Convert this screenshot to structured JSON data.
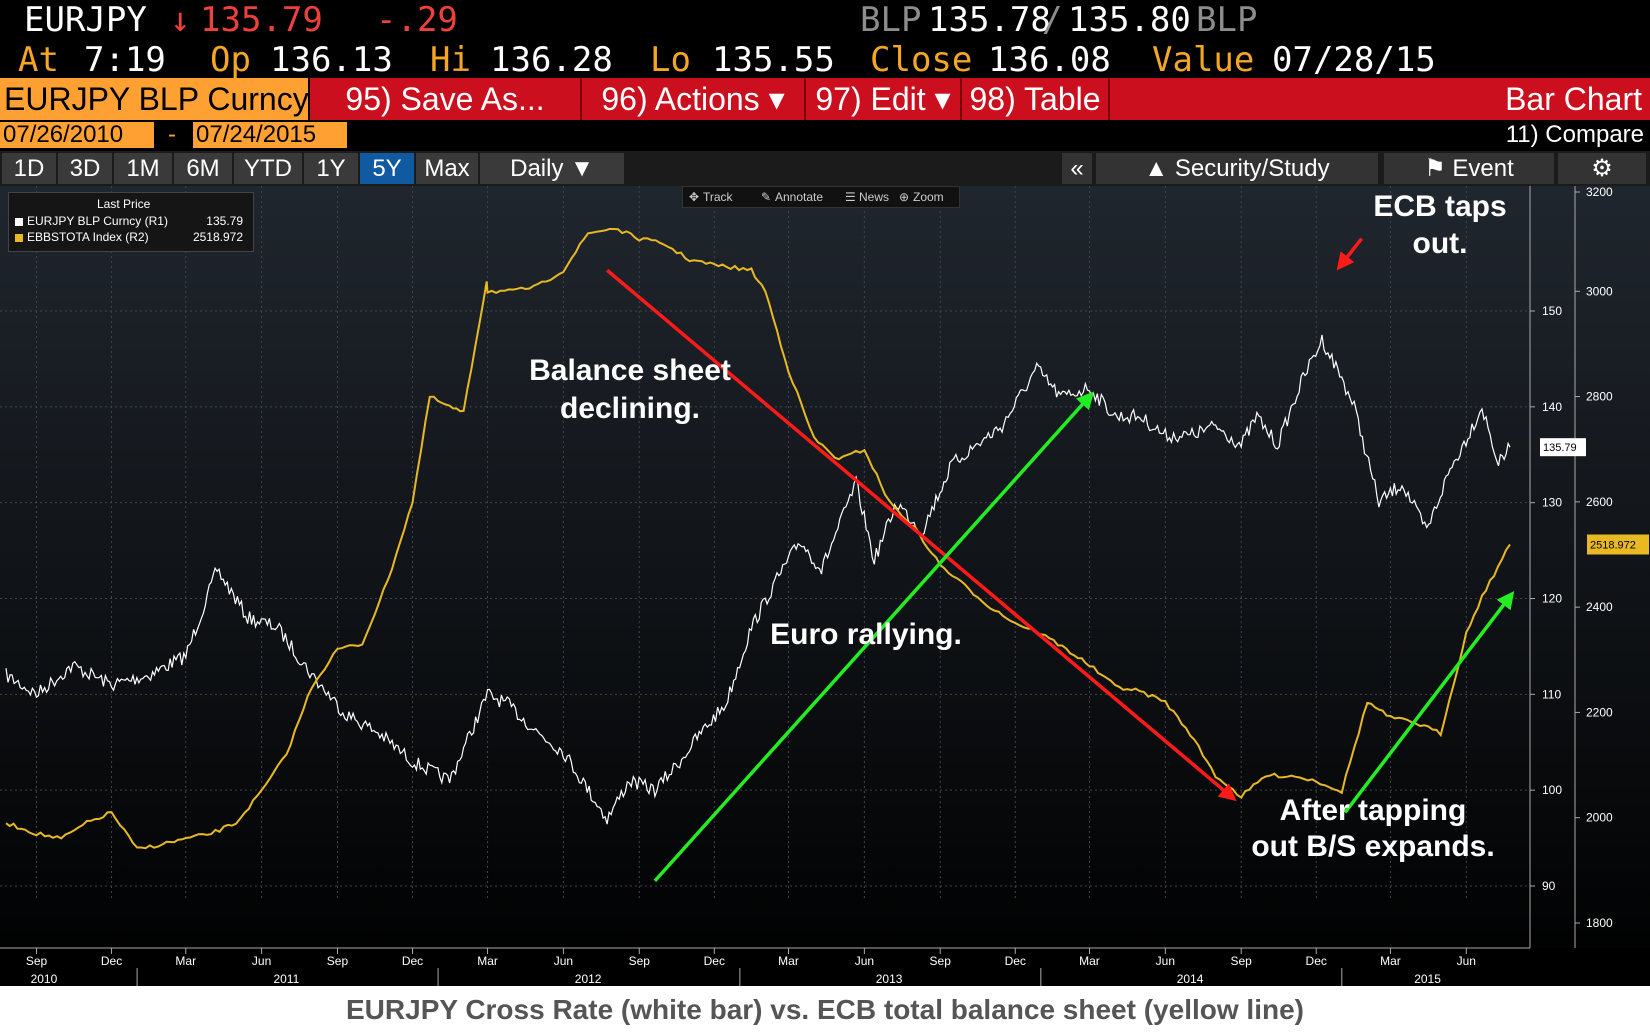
{
  "quote": {
    "ticker": "EURJPY",
    "arrow": "↓",
    "last": "135.79",
    "change": "-.29",
    "bid_label": "BLP",
    "bid": "135.78",
    "separator": "/",
    "ask": "135.80",
    "ask_label": "BLP",
    "at_label": "At",
    "at_time": "7:19",
    "op_label": "Op",
    "op": "136.13",
    "hi_label": "Hi",
    "hi": "136.28",
    "lo_label": "Lo",
    "lo": "135.55",
    "close_label": "Close",
    "close": "136.08",
    "value_label": "Value",
    "value_date": "07/28/15"
  },
  "toolbar": {
    "security": "EURJPY BLP Curncy",
    "save_as": "95) Save As...",
    "actions": "96) Actions ▾",
    "edit": "97) Edit ▾",
    "table": "98) Table",
    "title": "Bar Chart"
  },
  "dates": {
    "start": "07/26/2010",
    "dash": "-",
    "end": "07/24/2015",
    "compare": "11) Compare"
  },
  "tabs": [
    "1D",
    "3D",
    "1M",
    "6M",
    "YTD",
    "1Y",
    "5Y",
    "Max",
    "Daily ▼"
  ],
  "active_tab": "5Y",
  "right_tabs": {
    "collapse": "«",
    "study": "Security/Study",
    "event": "Event",
    "settings": "⚙"
  },
  "legend": {
    "header": "Last Price",
    "r1_name": "EURJPY BLP Curncy  (R1)",
    "r1_value": "135.79",
    "r2_name": "EBBSTOTA Index  (R2)",
    "r2_value": "2518.972"
  },
  "tools": [
    "Track",
    "Annotate",
    "News",
    "Zoom"
  ],
  "annotations": {
    "ecb_1": "ECB taps",
    "ecb_2": "out.",
    "bs_1": "Balance sheet",
    "bs_2": "declining.",
    "euro": "Euro rallying.",
    "after_1": "After tapping",
    "after_2": "out B/S expands."
  },
  "caption": "EURJPY Cross Rate (white bar) vs. ECB total balance sheet (yellow line)",
  "colors": {
    "background": "#000000",
    "price": "#ffffff",
    "balance_sheet": "#e8b923",
    "accent_red": "#cc0f1e",
    "accent_orange": "#ffa033",
    "arrow_red": "#ff1a1a",
    "arrow_green": "#22ee22"
  },
  "chart_data": {
    "type": "line",
    "x_ticks": [
      "Sep",
      "Dec",
      "Mar",
      "Jun",
      "Sep",
      "Dec",
      "Mar",
      "Jun",
      "Sep",
      "Dec",
      "Mar",
      "Jun",
      "Sep",
      "Dec",
      "Mar",
      "Jun",
      "Sep",
      "Dec",
      "Mar",
      "Jun"
    ],
    "year_labels": [
      "2010",
      "2011",
      "2012",
      "2013",
      "2014",
      "2015"
    ],
    "left_axis": {
      "ylim": [
        90,
        150
      ],
      "ticks": [
        90,
        100,
        110,
        120,
        130,
        140,
        150
      ]
    },
    "right_axis": {
      "ylim": [
        1800,
        3200
      ],
      "ticks": [
        1800,
        2000,
        2200,
        2400,
        2600,
        2800,
        3000,
        3200
      ]
    },
    "last_value_tags": [
      {
        "series": "EURJPY BLP Curncy",
        "value": "135.79"
      },
      {
        "series": "EBBSTOTA Index",
        "value": "2518.972"
      }
    ],
    "series": [
      {
        "name": "EURJPY BLP Curncy",
        "axis": "left",
        "x": [
          "2010-07-26",
          "2010-09-01",
          "2010-10-15",
          "2010-12-01",
          "2011-01-15",
          "2011-03-01",
          "2011-04-08",
          "2011-05-15",
          "2011-06-20",
          "2011-08-01",
          "2011-09-10",
          "2011-10-20",
          "2011-12-01",
          "2012-01-15",
          "2012-03-01",
          "2012-03-25",
          "2012-05-01",
          "2012-06-01",
          "2012-07-24",
          "2012-08-20",
          "2012-09-20",
          "2012-10-20",
          "2012-11-15",
          "2012-12-15",
          "2013-01-15",
          "2013-02-15",
          "2013-03-15",
          "2013-04-10",
          "2013-05-22",
          "2013-06-13",
          "2013-07-10",
          "2013-08-10",
          "2013-09-15",
          "2013-10-15",
          "2013-11-15",
          "2013-12-27",
          "2014-01-25",
          "2014-03-01",
          "2014-04-01",
          "2014-05-01",
          "2014-06-01",
          "2014-07-01",
          "2014-08-01",
          "2014-09-01",
          "2014-09-20",
          "2014-10-15",
          "2014-11-15",
          "2014-12-08",
          "2015-01-01",
          "2015-01-16",
          "2015-02-15",
          "2015-03-15",
          "2015-04-14",
          "2015-05-10",
          "2015-06-03",
          "2015-06-20",
          "2015-07-10",
          "2015-07-24"
        ],
        "values": [
          112,
          110,
          113,
          111,
          112,
          114,
          123,
          118,
          117,
          112,
          108,
          106,
          103,
          101,
          110,
          109,
          106,
          104,
          97,
          101,
          100,
          103,
          106,
          109,
          117,
          122,
          126,
          123,
          132,
          124,
          130,
          127,
          134,
          136,
          138,
          144,
          141,
          142,
          139,
          139,
          137,
          137,
          138,
          136,
          139,
          136,
          143,
          147,
          143,
          140,
          130,
          132,
          127,
          133,
          137,
          140,
          134,
          135.79
        ]
      },
      {
        "name": "EBBSTOTA Index",
        "axis": "right",
        "x": [
          "2010-07-26",
          "2010-09-01",
          "2010-10-01",
          "2010-11-01",
          "2010-12-01",
          "2011-01-01",
          "2011-02-01",
          "2011-03-01",
          "2011-04-01",
          "2011-05-01",
          "2011-06-01",
          "2011-07-01",
          "2011-08-01",
          "2011-09-01",
          "2011-10-01",
          "2011-11-01",
          "2011-12-01",
          "2011-12-22",
          "2012-01-15",
          "2012-02-01",
          "2012-02-29",
          "2012-03-01",
          "2012-04-01",
          "2012-05-01",
          "2012-06-01",
          "2012-07-01",
          "2012-08-01",
          "2012-09-01",
          "2012-10-01",
          "2012-11-01",
          "2012-12-01",
          "2013-01-15",
          "2013-02-01",
          "2013-03-01",
          "2013-04-01",
          "2013-05-01",
          "2013-06-01",
          "2013-07-01",
          "2013-08-01",
          "2013-09-01",
          "2013-10-01",
          "2013-11-01",
          "2013-12-01",
          "2014-01-01",
          "2014-02-01",
          "2014-03-01",
          "2014-04-01",
          "2014-05-01",
          "2014-06-01",
          "2014-07-01",
          "2014-08-01",
          "2014-09-01",
          "2014-10-01",
          "2014-11-01",
          "2014-12-01",
          "2015-01-01",
          "2015-02-01",
          "2015-03-01",
          "2015-04-01",
          "2015-05-01",
          "2015-06-01",
          "2015-06-20",
          "2015-07-24"
        ],
        "values": [
          1990,
          1970,
          1960,
          1990,
          2010,
          1940,
          1950,
          1960,
          1970,
          1990,
          2050,
          2120,
          2250,
          2320,
          2330,
          2450,
          2600,
          2800,
          2780,
          2770,
          3020,
          3000,
          3000,
          3010,
          3040,
          3110,
          3120,
          3100,
          3090,
          3060,
          3050,
          3040,
          3000,
          2850,
          2720,
          2680,
          2700,
          2600,
          2550,
          2480,
          2440,
          2400,
          2370,
          2350,
          2320,
          2290,
          2250,
          2240,
          2220,
          2160,
          2080,
          2040,
          2080,
          2080,
          2070,
          2050,
          2220,
          2190,
          2180,
          2160,
          2350,
          2420,
          2518.972
        ]
      }
    ],
    "arrows": [
      {
        "color": "red",
        "from": [
          "2012-07-24",
          3040
        ],
        "to": [
          "2014-08-20",
          2040
        ]
      },
      {
        "color": "green",
        "from": [
          "2012-09-20",
          1880
        ],
        "to": [
          "2014-03-01",
          2800
        ]
      },
      {
        "color": "green",
        "from": [
          "2015-01-05",
          2010
        ],
        "to": [
          "2015-07-24",
          2420
        ]
      },
      {
        "color": "red",
        "from": [
          "2015-01-25",
          3100
        ],
        "to": [
          "2014-12-31",
          3050
        ]
      }
    ]
  }
}
